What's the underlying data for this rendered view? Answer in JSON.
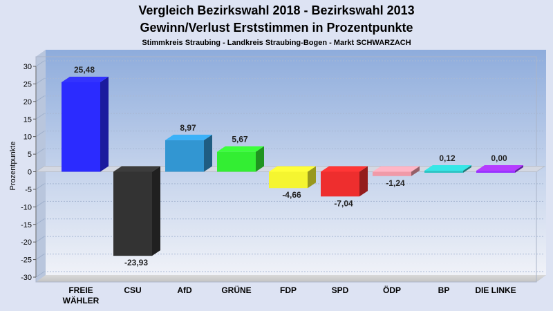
{
  "chart_data": {
    "type": "bar",
    "title": "Vergleich Bezirkswahl 2018 - Bezirkswahl 2013",
    "subtitle": "Gewinn/Verlust Erststimmen in Prozentpunkte",
    "caption": "Stimmkreis Straubing - Landkreis Straubing-Bogen - Markt SCHWARZACH",
    "ylabel": "Prozentpunkte",
    "xlabel": "",
    "ylim": [
      -30,
      30
    ],
    "yticks": [
      30,
      25,
      20,
      15,
      10,
      5,
      0,
      -5,
      -10,
      -15,
      -20,
      -25,
      -30
    ],
    "grid": true,
    "bars": [
      {
        "label_lines": [
          "FREIE",
          "WÄHLER"
        ],
        "value": 25.48,
        "value_label": "25,48",
        "color": "#2b2bff"
      },
      {
        "label_lines": [
          "CSU"
        ],
        "value": -23.93,
        "value_label": "-23,93",
        "color": "#333333"
      },
      {
        "label_lines": [
          "AfD"
        ],
        "value": 8.97,
        "value_label": "8,97",
        "color": "#3296d2"
      },
      {
        "label_lines": [
          "GRÜNE"
        ],
        "value": 5.67,
        "value_label": "5,67",
        "color": "#33ee33"
      },
      {
        "label_lines": [
          "FDP"
        ],
        "value": -4.66,
        "value_label": "-4,66",
        "color": "#f5f530"
      },
      {
        "label_lines": [
          "SPD"
        ],
        "value": -7.04,
        "value_label": "-7,04",
        "color": "#ee2e2e"
      },
      {
        "label_lines": [
          "ÖDP"
        ],
        "value": -1.24,
        "value_label": "-1,24",
        "color": "#f09aa8"
      },
      {
        "label_lines": [
          "BP"
        ],
        "value": 0.12,
        "value_label": "0,12",
        "color": "#2ec4c4"
      },
      {
        "label_lines": [
          "DIE LINKE"
        ],
        "value": 0.0,
        "value_label": "0,00",
        "color": "#9933ff"
      }
    ]
  }
}
